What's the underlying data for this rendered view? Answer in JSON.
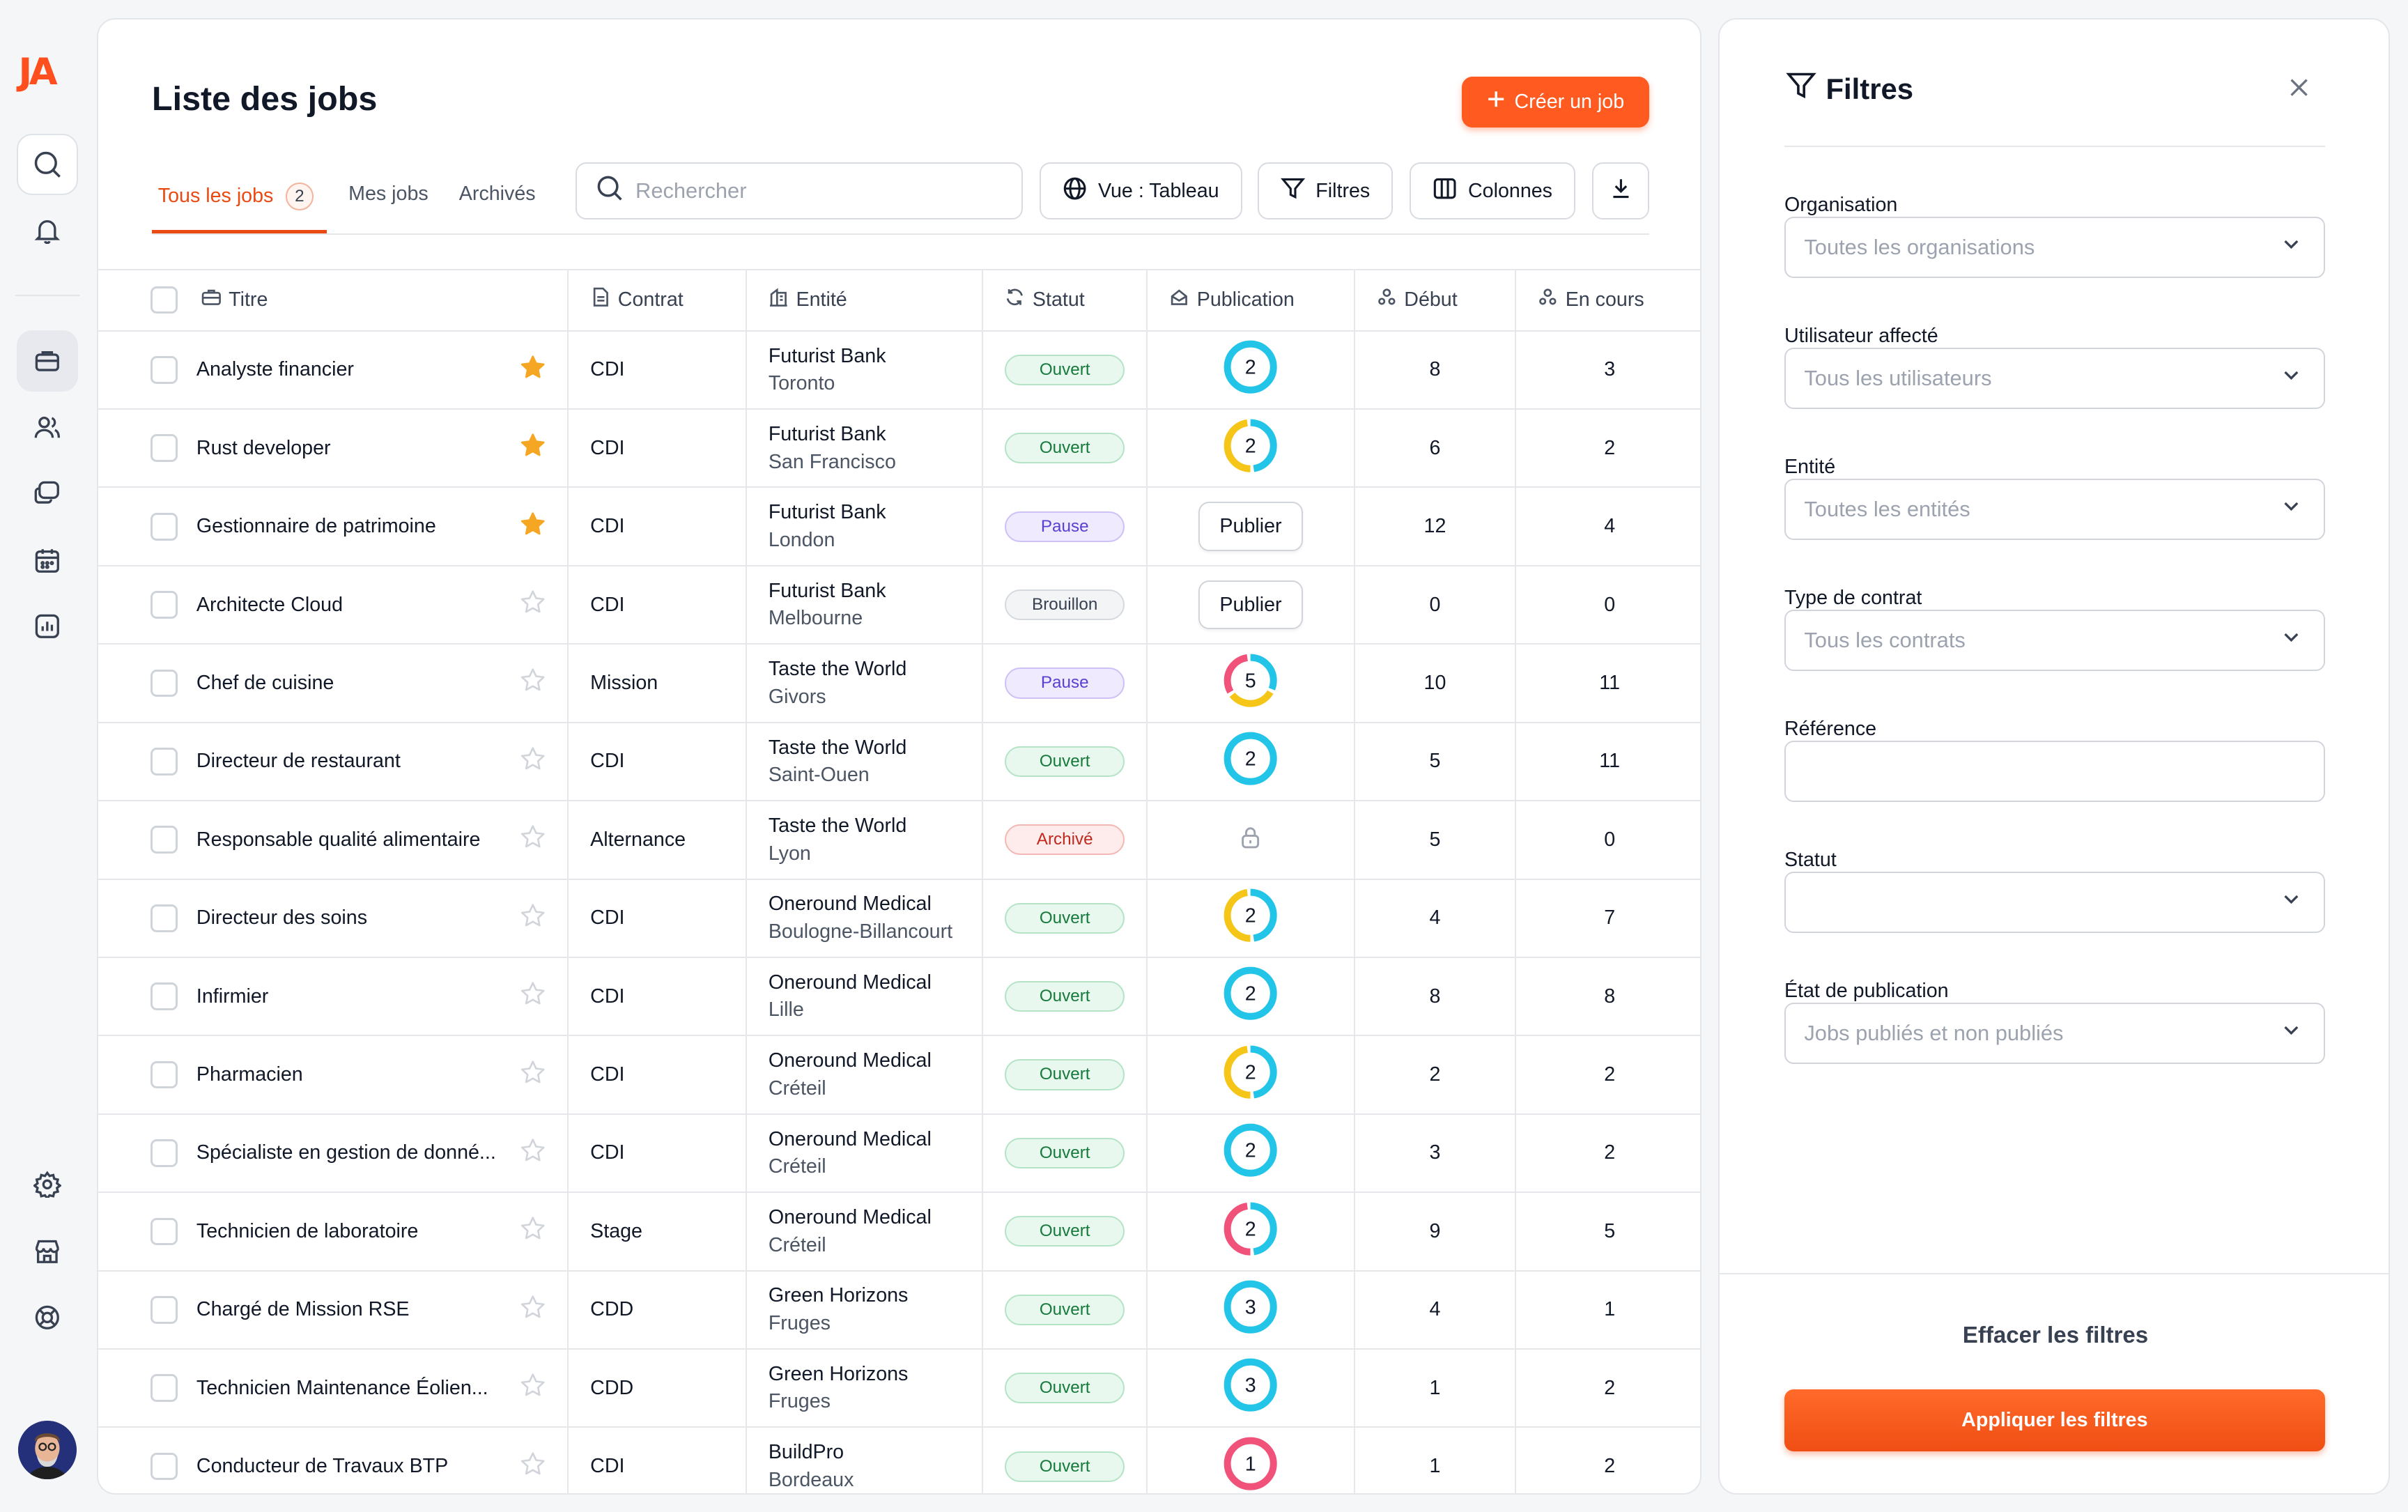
{
  "app": {
    "logo": "JA"
  },
  "header": {
    "title": "Liste des jobs",
    "create_label": "Créer un job"
  },
  "tabs": [
    {
      "label": "Tous les jobs",
      "count": "2"
    },
    {
      "label": "Mes jobs"
    },
    {
      "label": "Archivés"
    }
  ],
  "toolbar": {
    "search_placeholder": "Rechercher",
    "view_label": "Vue : Tableau",
    "filters_label": "Filtres",
    "columns_label": "Colonnes"
  },
  "table": {
    "columns": [
      "Titre",
      "Contrat",
      "Entité",
      "Statut",
      "Publication",
      "Début",
      "En cours"
    ],
    "rows": [
      {
        "title": "Analyste financier",
        "starred": true,
        "contract": "CDI",
        "entity": "Futurist Bank",
        "city": "Toronto",
        "status": "Ouvert",
        "pub": {
          "type": "donut",
          "n": "2",
          "colors": [
            "#22c5e8"
          ]
        },
        "debut": "8",
        "en_cours": "3"
      },
      {
        "title": "Rust developer",
        "starred": true,
        "contract": "CDI",
        "entity": "Futurist Bank",
        "city": "San Francisco",
        "status": "Ouvert",
        "pub": {
          "type": "donut",
          "n": "2",
          "colors": [
            "#22c5e8",
            "#f5c518"
          ]
        },
        "debut": "6",
        "en_cours": "2"
      },
      {
        "title": "Gestionnaire de patrimoine",
        "starred": true,
        "contract": "CDI",
        "entity": "Futurist Bank",
        "city": "London",
        "status": "Pause",
        "pub": {
          "type": "button",
          "label": "Publier"
        },
        "debut": "12",
        "en_cours": "4"
      },
      {
        "title": "Architecte Cloud",
        "starred": false,
        "contract": "CDI",
        "entity": "Futurist Bank",
        "city": "Melbourne",
        "status": "Brouillon",
        "pub": {
          "type": "button",
          "label": "Publier"
        },
        "debut": "0",
        "en_cours": "0"
      },
      {
        "title": "Chef de cuisine",
        "starred": false,
        "contract": "Mission",
        "entity": "Taste the World",
        "city": "Givors",
        "status": "Pause",
        "pub": {
          "type": "donut",
          "n": "5",
          "colors": [
            "#22c5e8",
            "#f5c518",
            "#f0527a"
          ]
        },
        "debut": "10",
        "en_cours": "11"
      },
      {
        "title": "Directeur de restaurant",
        "starred": false,
        "contract": "CDI",
        "entity": "Taste the World",
        "city": "Saint-Ouen",
        "status": "Ouvert",
        "pub": {
          "type": "donut",
          "n": "2",
          "colors": [
            "#22c5e8"
          ]
        },
        "debut": "5",
        "en_cours": "11"
      },
      {
        "title": "Responsable qualité alimentaire",
        "starred": false,
        "contract": "Alternance",
        "entity": "Taste the World",
        "city": "Lyon",
        "status": "Archivé",
        "pub": {
          "type": "lock"
        },
        "debut": "5",
        "en_cours": "0"
      },
      {
        "title": "Directeur des soins",
        "starred": false,
        "contract": "CDI",
        "entity": "Oneround Medical",
        "city": "Boulogne-Billancourt",
        "status": "Ouvert",
        "pub": {
          "type": "donut",
          "n": "2",
          "colors": [
            "#22c5e8",
            "#f5c518"
          ]
        },
        "debut": "4",
        "en_cours": "7"
      },
      {
        "title": "Infirmier",
        "starred": false,
        "contract": "CDI",
        "entity": "Oneround Medical",
        "city": "Lille",
        "status": "Ouvert",
        "pub": {
          "type": "donut",
          "n": "2",
          "colors": [
            "#22c5e8"
          ]
        },
        "debut": "8",
        "en_cours": "8"
      },
      {
        "title": "Pharmacien",
        "starred": false,
        "contract": "CDI",
        "entity": "Oneround Medical",
        "city": "Créteil",
        "status": "Ouvert",
        "pub": {
          "type": "donut",
          "n": "2",
          "colors": [
            "#22c5e8",
            "#f5c518"
          ]
        },
        "debut": "2",
        "en_cours": "2"
      },
      {
        "title": "Spécialiste en gestion de donné...",
        "starred": false,
        "contract": "CDI",
        "entity": "Oneround Medical",
        "city": "Créteil",
        "status": "Ouvert",
        "pub": {
          "type": "donut",
          "n": "2",
          "colors": [
            "#22c5e8"
          ]
        },
        "debut": "3",
        "en_cours": "2"
      },
      {
        "title": "Technicien de laboratoire",
        "starred": false,
        "contract": "Stage",
        "entity": "Oneround Medical",
        "city": "Créteil",
        "status": "Ouvert",
        "pub": {
          "type": "donut",
          "n": "2",
          "colors": [
            "#22c5e8",
            "#f0527a"
          ]
        },
        "debut": "9",
        "en_cours": "5"
      },
      {
        "title": "Chargé de Mission RSE",
        "starred": false,
        "contract": "CDD",
        "entity": "Green Horizons",
        "city": "Fruges",
        "status": "Ouvert",
        "pub": {
          "type": "donut",
          "n": "3",
          "colors": [
            "#22c5e8"
          ]
        },
        "debut": "4",
        "en_cours": "1"
      },
      {
        "title": "Technicien Maintenance Éolien...",
        "starred": false,
        "contract": "CDD",
        "entity": "Green Horizons",
        "city": "Fruges",
        "status": "Ouvert",
        "pub": {
          "type": "donut",
          "n": "3",
          "colors": [
            "#22c5e8"
          ]
        },
        "debut": "1",
        "en_cours": "2"
      },
      {
        "title": "Conducteur de Travaux BTP",
        "starred": false,
        "contract": "CDI",
        "entity": "BuildPro",
        "city": "Bordeaux",
        "status": "Ouvert",
        "pub": {
          "type": "donut",
          "n": "1",
          "colors": [
            "#f0527a"
          ]
        },
        "debut": "1",
        "en_cours": "2"
      }
    ]
  },
  "filters": {
    "title": "Filtres",
    "fields": [
      {
        "label": "Organisation",
        "value": "Toutes les organisations",
        "type": "select"
      },
      {
        "label": "Utilisateur affecté",
        "value": "Tous les utilisateurs",
        "type": "select"
      },
      {
        "label": "Entité",
        "value": "Toutes les entités",
        "type": "select"
      },
      {
        "label": "Type de contrat",
        "value": "Tous les contrats",
        "type": "select"
      },
      {
        "label": "Référence",
        "value": "",
        "type": "input"
      },
      {
        "label": "Statut",
        "value": "",
        "type": "select"
      },
      {
        "label": "État de publication",
        "value": "Jobs publiés et non publiés",
        "type": "select"
      }
    ],
    "clear_label": "Effacer les filtres",
    "apply_label": "Appliquer les filtres"
  },
  "colors": {
    "accent": "#ff5a1f",
    "star": "#f5a623",
    "donut_cyan": "#22c5e8",
    "donut_yellow": "#f5c518",
    "donut_pink": "#f0527a"
  }
}
